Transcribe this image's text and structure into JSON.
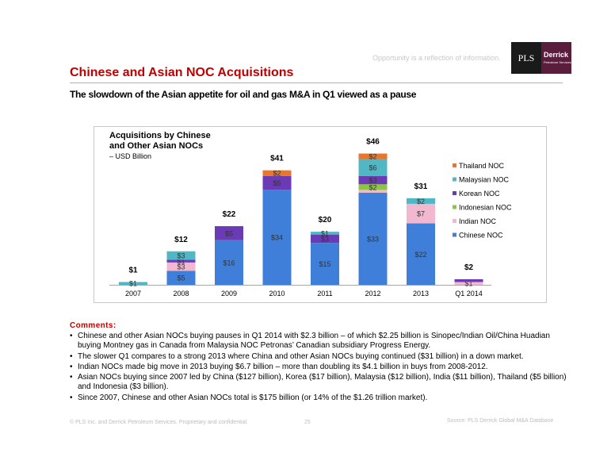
{
  "header": {
    "tagline": "Opportunity is a reflection of information.",
    "logo_pls": "PLS",
    "logo_derrick": "Derrick",
    "logo_derrick_sub": "Petroleum Services"
  },
  "slide": {
    "title": "Chinese and Asian NOC Acquisitions",
    "subtitle": "The slowdown of the Asian appetite for oil and gas M&A in Q1 viewed as a pause"
  },
  "chart_data": {
    "type": "bar",
    "stacked": true,
    "title": "Acquisitions by Chinese and Other Asian NOCs",
    "title_line1": "Acquisitions by Chinese",
    "title_line2": "and Other Asian NOCs",
    "unit_label": "– USD Billion",
    "categories": [
      "2007",
      "2008",
      "2009",
      "2010",
      "2011",
      "2012",
      "2013",
      "Q1 2014"
    ],
    "series": [
      {
        "name": "Chinese NOC",
        "color": "#3f7fd9",
        "values": [
          0,
          5,
          16,
          34,
          15,
          33,
          22,
          0
        ]
      },
      {
        "name": "Indian NOC",
        "color": "#f2b8cf",
        "values": [
          0,
          3,
          0,
          0,
          0,
          1,
          7,
          1
        ]
      },
      {
        "name": "Indonesian NOC",
        "color": "#8bc63f",
        "values": [
          0,
          0,
          0,
          0,
          0,
          2,
          0,
          0
        ]
      },
      {
        "name": "Korean NOC",
        "color": "#6a3bb5",
        "values": [
          0,
          1,
          5,
          5,
          3,
          3,
          0,
          1
        ]
      },
      {
        "name": "Malaysian NOC",
        "color": "#4fb8c4",
        "values": [
          1,
          3,
          0,
          0,
          1,
          6,
          2,
          0
        ]
      },
      {
        "name": "Thailand NOC",
        "color": "#e8762c",
        "values": [
          0,
          0,
          0,
          2,
          0,
          2,
          0,
          0
        ]
      }
    ],
    "segment_labels": [
      [
        null,
        "$5",
        "$16",
        "$34",
        "$15",
        "$33",
        "$22",
        null
      ],
      [
        null,
        "$3",
        null,
        null,
        null,
        null,
        "$7",
        "$1"
      ],
      [
        null,
        null,
        null,
        null,
        null,
        "$2",
        null,
        null
      ],
      [
        null,
        "$1",
        "$5",
        "$5",
        "$3",
        "$3",
        null,
        null
      ],
      [
        "$1",
        "$3",
        null,
        null,
        "$1",
        "$6",
        "$2",
        null
      ],
      [
        null,
        null,
        null,
        "$2",
        null,
        "$2",
        null,
        null
      ]
    ],
    "totals": [
      "$1",
      "$12",
      "$22",
      "$41",
      "$20",
      "$46",
      "$31",
      "$2"
    ],
    "ylim": [
      0,
      50
    ],
    "legend_position": "right",
    "grid": false
  },
  "comments": {
    "heading": "Comments:",
    "items": [
      "Chinese and other Asian NOCs buying pauses in Q1 2014 with $2.3 billion – of which $2.25 billion is Sinopec/Indian Oil/China Huadian buying Montney gas in Canada from Malaysia NOC Petronas’ Canadian subsidiary Progress Energy.",
      "The slower Q1 compares to a strong 2013 where China and other Asian NOCs buying continued ($31 billion) in a down market.",
      "Indian NOCs made big move in 2013 buying $6.7 billion – more than doubling its $4.1 billion in buys from 2008-2012.",
      "Asian NOCs buying since 2007 led by China ($127 billion), Korea ($17 billion), Malaysia ($12 billion), India ($11 billion), Thailand ($5 billion) and Indonesia ($3 billion).",
      "Since 2007, Chinese and other Asian NOCs total is $175 billion (or 14% of the $1.26 trillion market)."
    ]
  },
  "footer": {
    "left": "© PLS Inc. and Derrick Petroleum Services. Proprietary and confidential.",
    "page": "25",
    "right": "Source: PLS Derrick Global M&A Database"
  }
}
